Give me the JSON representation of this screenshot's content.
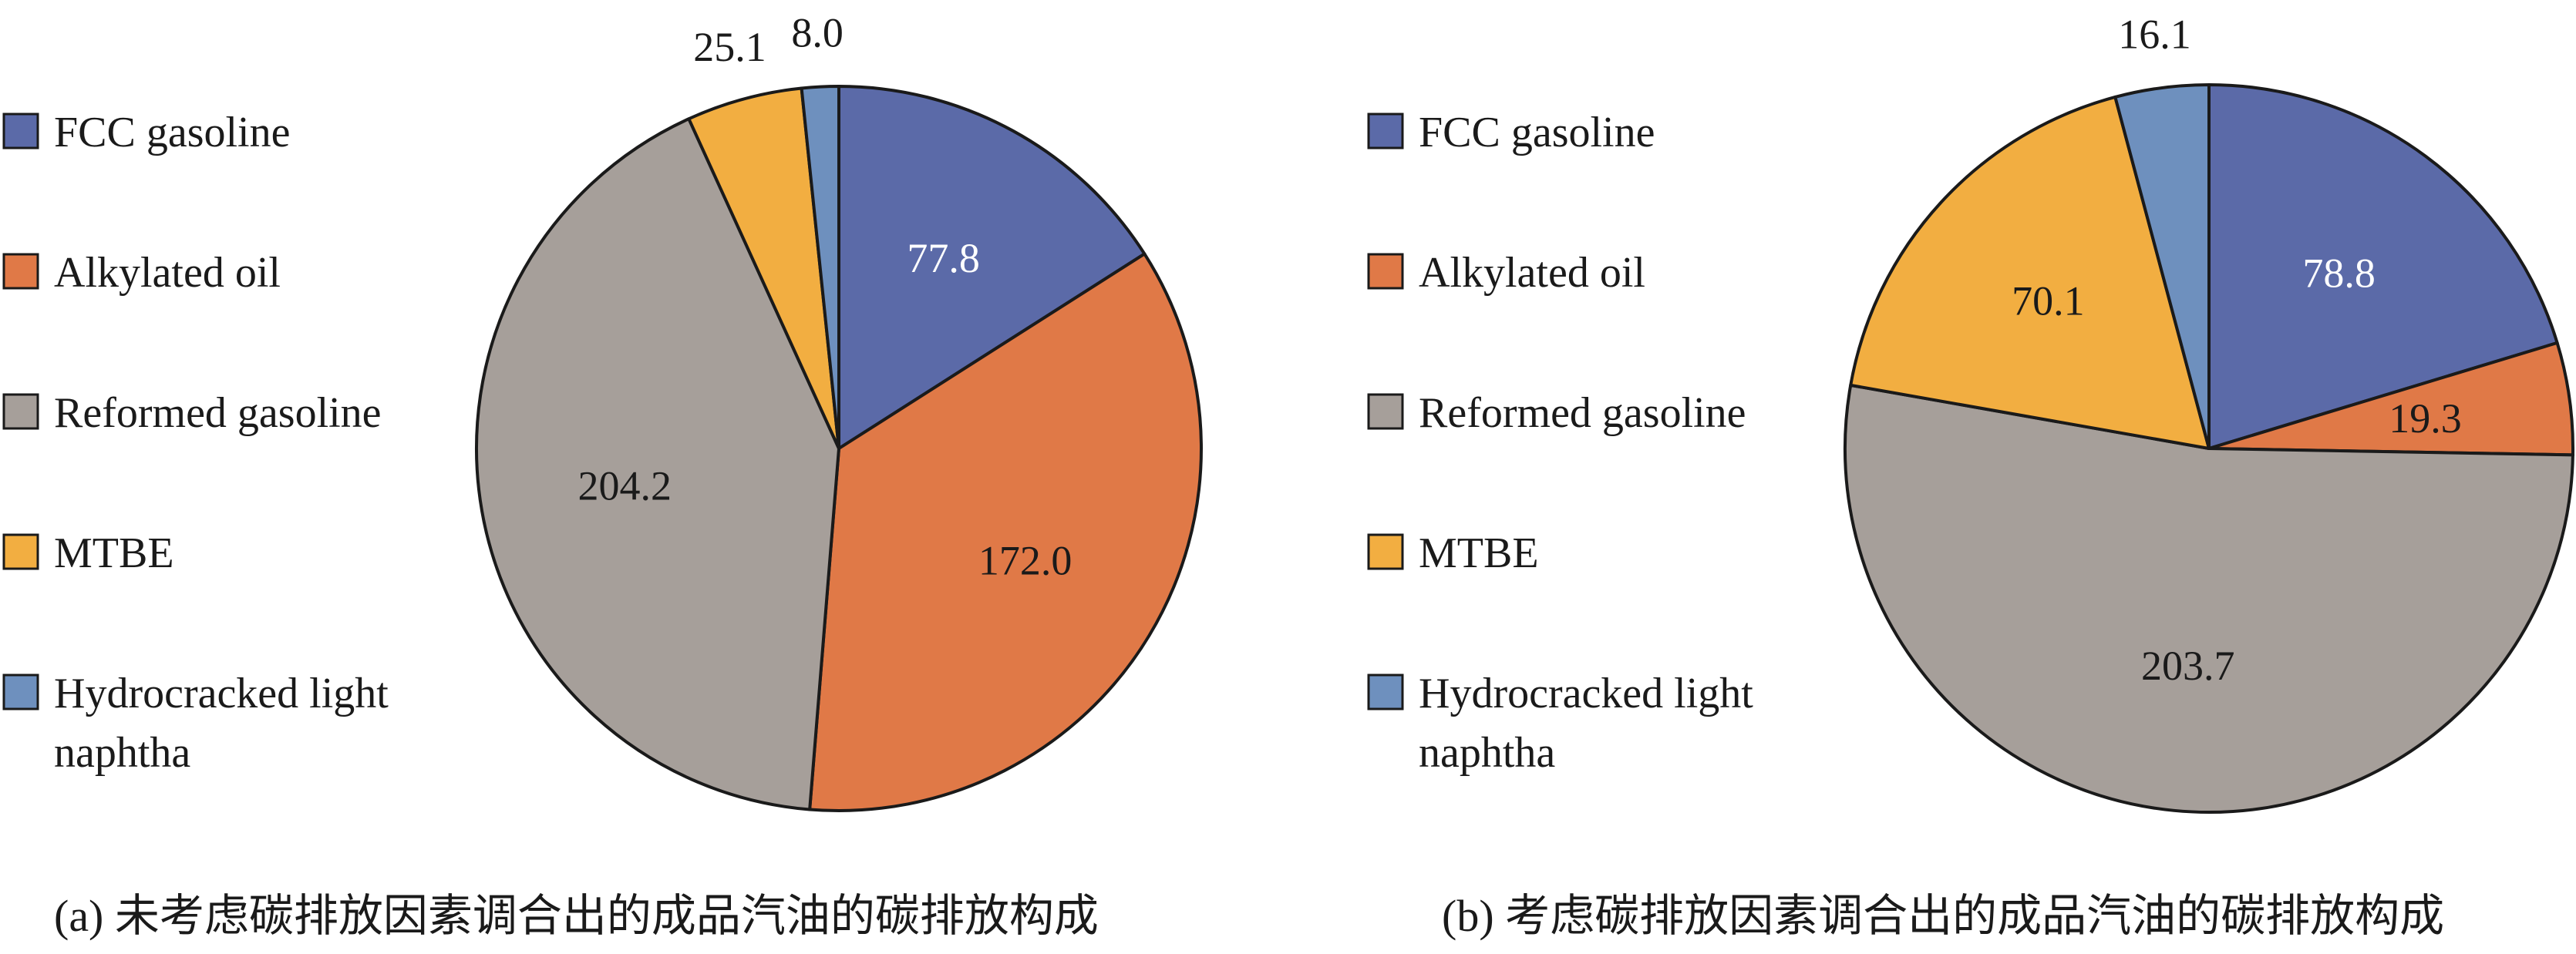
{
  "legend": {
    "items": [
      {
        "label": "FCC gasoline",
        "color": "#5b6aa8"
      },
      {
        "label": "Alkylated oil",
        "color": "#e07947"
      },
      {
        "label": "Reformed gasoline",
        "color": "#a69f9a"
      },
      {
        "label": "MTBE",
        "color": "#f2ae41"
      },
      {
        "label": "Hydrocracked light",
        "label2": "naphtha",
        "color": "#6e90be"
      }
    ]
  },
  "chart_data": [
    {
      "type": "pie",
      "title": "(a) 未考虑碳排放因素调合出的成品汽油的碳排放构成",
      "categories": [
        "FCC gasoline",
        "Alkylated oil",
        "Reformed gasoline",
        "MTBE",
        "Hydrocracked light naphtha"
      ],
      "values": [
        77.8,
        172.0,
        204.2,
        25.1,
        8.0
      ],
      "data_labels": [
        "77.8",
        "172.0",
        "204.2",
        "25.1",
        "8.0"
      ],
      "label_colors": [
        "#ffffff",
        "#1a1a1a",
        "#1a1a1a",
        "#1a1a1a",
        "#1a1a1a"
      ],
      "label_outside": [
        false,
        false,
        false,
        true,
        true
      ],
      "start": "12 o'clock",
      "direction": "clockwise"
    },
    {
      "type": "pie",
      "title": "(b) 考虑碳排放因素调合出的成品汽油的碳排放构成",
      "categories": [
        "FCC gasoline",
        "Alkylated oil",
        "Reformed gasoline",
        "MTBE",
        "Hydrocracked light naphtha"
      ],
      "values": [
        78.8,
        19.3,
        203.7,
        70.1,
        16.1
      ],
      "data_labels": [
        "78.8",
        "19.3",
        "203.7",
        "70.1",
        "16.1"
      ],
      "label_colors": [
        "#ffffff",
        "#1a1a1a",
        "#1a1a1a",
        "#1a1a1a",
        "#1a1a1a"
      ],
      "label_outside": [
        false,
        false,
        false,
        false,
        true
      ],
      "start": "12 o'clock",
      "direction": "clockwise"
    }
  ]
}
